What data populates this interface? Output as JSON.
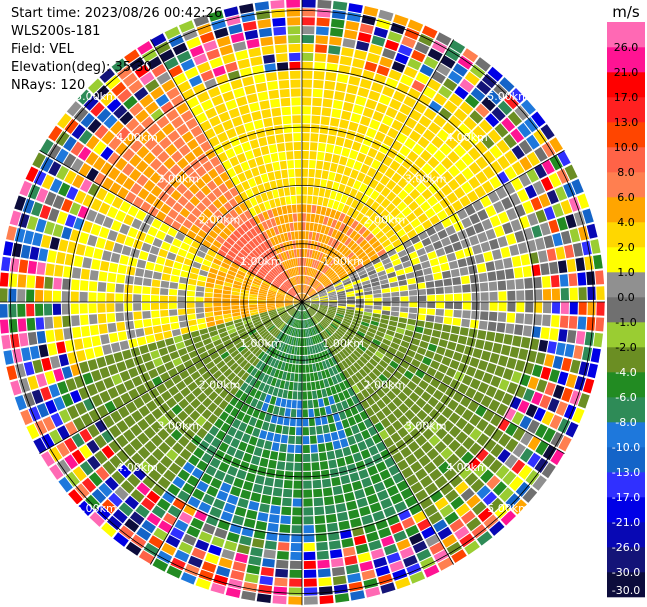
{
  "chart_data": {
    "type": "ppi_radar",
    "info": {
      "start_time": "Start time: 2023/08/26 00:42:26",
      "instrument": "WLS200s-181",
      "field": "Field: VEL",
      "elevation": "Elevation(deg): 35.30",
      "nrays": "NRays: 120"
    },
    "range_rings_km": [
      "1.00km",
      "2.00km",
      "3.00km",
      "4.00km",
      "5.00km"
    ],
    "max_range_km": 5.2,
    "colorbar": {
      "unit": "m/s",
      "ticks": [
        "-30.0",
        "-26.0",
        "-21.0",
        "-17.0",
        "-13.0",
        "-10.0",
        "-8.0",
        "-6.0",
        "-4.0",
        "-2.0",
        "-1.0",
        "0.0",
        "1.0",
        "2.0",
        "4.0",
        "6.0",
        "8.0",
        "10.0",
        "13.0",
        "17.0",
        "21.0",
        "26.0"
      ],
      "colors": [
        "#0c0c3c",
        "#141478",
        "#0808b4",
        "#0000e6",
        "#3030ff",
        "#1464c8",
        "#1e78dc",
        "#2e8b57",
        "#228b22",
        "#6b8e23",
        "#9acd32",
        "#707070",
        "#909090",
        "#ffff00",
        "#ffd700",
        "#ffa500",
        "#ff7f50",
        "#ff6347",
        "#ff4500",
        "#ff2020",
        "#ff0000",
        "#ff1493",
        "#ff69b4"
      ]
    },
    "sectors": [
      {
        "from_deg": -30,
        "to_deg": 60,
        "value_ms": 2.5,
        "label": "approaching-yellow"
      },
      {
        "from_deg": 60,
        "to_deg": 100,
        "value_ms": 0.5,
        "label": "near-zero-gray"
      },
      {
        "from_deg": 100,
        "to_deg": 150,
        "value_ms": -3.0,
        "label": "olive-green"
      },
      {
        "from_deg": 150,
        "to_deg": 215,
        "value_ms": -6.0,
        "label": "green"
      },
      {
        "from_deg": 215,
        "to_deg": 255,
        "value_ms": -3.0,
        "label": "olive-green"
      },
      {
        "from_deg": 255,
        "to_deg": 300,
        "value_ms": 1.5,
        "label": "yellow"
      },
      {
        "from_deg": 300,
        "to_deg": 330,
        "value_ms": 6.0,
        "label": "orange"
      }
    ],
    "noise_start_km": 4.4
  }
}
